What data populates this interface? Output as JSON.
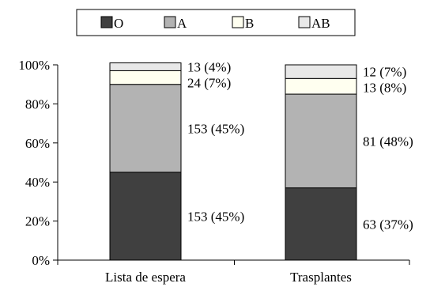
{
  "chart_data": {
    "type": "bar",
    "stacked": true,
    "normalized": true,
    "categories": [
      "Lista de espera",
      "Trasplantes"
    ],
    "series": [
      {
        "name": "O",
        "values": [
          45,
          37
        ],
        "labels": [
          "153 (45%)",
          "63 (37%)"
        ],
        "color": "#404040"
      },
      {
        "name": "A",
        "values": [
          45,
          48
        ],
        "labels": [
          "153 (45%)",
          "81 (48%)"
        ],
        "color": "#b3b3b3"
      },
      {
        "name": "B",
        "values": [
          7,
          8
        ],
        "labels": [
          "24 (7%)",
          "13 (8%)"
        ],
        "color": "#fffff0"
      },
      {
        "name": "AB",
        "values": [
          4,
          7
        ],
        "labels": [
          "13 (4%)",
          "12 (7%)"
        ],
        "color": "#e8e8e8"
      }
    ],
    "ylim": [
      0,
      100
    ],
    "yticks": [
      "0%",
      "20%",
      "40%",
      "60%",
      "80%",
      "100%"
    ],
    "ytick_values": [
      0,
      20,
      40,
      60,
      80,
      100
    ],
    "legend_position": "top",
    "grid": false
  }
}
